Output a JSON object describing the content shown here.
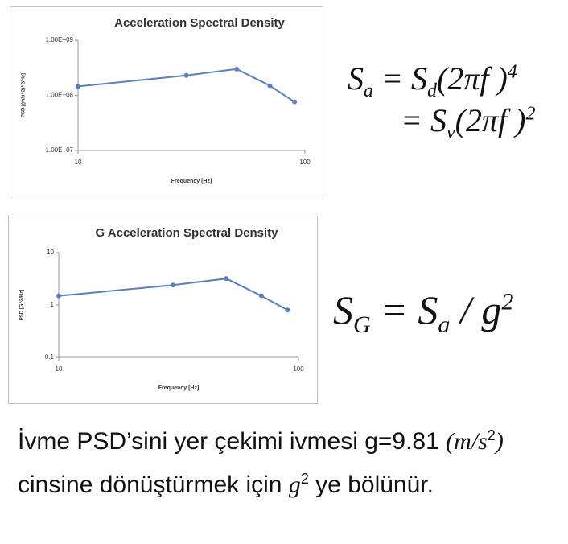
{
  "chart_data": [
    {
      "type": "line",
      "title": "Acceleration Spectral Density",
      "x_label": "Frequency [Hz]",
      "y_label": "PSD [(m/s^2)^2/Hz]",
      "x": [
        10,
        30,
        50,
        70,
        90
      ],
      "series": [
        {
          "name": "Acceleration PSD",
          "color": "#5b7ec2",
          "values": [
            145000000,
            230000000,
            300000000,
            150000000,
            76000000
          ]
        }
      ],
      "xscale": "log",
      "yscale": "log",
      "xlim": [
        10,
        100
      ],
      "ylim": [
        10000000,
        1000000000
      ],
      "xticks": [
        10,
        100
      ],
      "yticks": [
        {
          "value": 10000000,
          "label": "1.00E+07"
        },
        {
          "value": 100000000,
          "label": "1.00E+08"
        },
        {
          "value": 1000000000,
          "label": "1.00E+09"
        }
      ]
    },
    {
      "type": "line",
      "title": "G Acceleration Spectral Density",
      "x_label": "Frequency [Hz]",
      "y_label": "PSD [G^2/Hz]",
      "x": [
        10,
        30,
        50,
        70,
        90
      ],
      "series": [
        {
          "name": "G Acceleration PSD",
          "color": "#5b7ec2",
          "values": [
            1.5,
            2.4,
            3.2,
            1.5,
            0.8
          ]
        }
      ],
      "xscale": "log",
      "yscale": "log",
      "xlim": [
        10,
        100
      ],
      "ylim": [
        0.1,
        10
      ],
      "xticks": [
        10,
        100
      ],
      "yticks": [
        0.1,
        1,
        10
      ]
    }
  ],
  "equations": [
    [
      {
        "t": "S"
      },
      {
        "sub": "a"
      },
      {
        "t": " = S"
      },
      {
        "sub": "d"
      },
      {
        "t": "(2πf )"
      },
      {
        "sup": "4"
      }
    ],
    [
      {
        "t": "= S"
      },
      {
        "sub": "v"
      },
      {
        "t": "(2πf )"
      },
      {
        "sup": "2"
      }
    ],
    [
      {
        "t": "S"
      },
      {
        "sub": "G"
      },
      {
        "t": " = S"
      },
      {
        "sub": "a"
      },
      {
        "t": " / g"
      },
      {
        "sup": "2"
      }
    ]
  ],
  "text": [
    {
      "t": "İvme PSD’sini yer çekimi ivmesi g=9.81 "
    },
    {
      "m": "(m/s"
    },
    {
      "sup": "2"
    },
    {
      "m": ")"
    },
    {
      "t": " cinsine dönüştürmek için "
    },
    {
      "m": "g"
    },
    {
      "sup": "2"
    },
    {
      "t": " ye bölünür."
    }
  ]
}
